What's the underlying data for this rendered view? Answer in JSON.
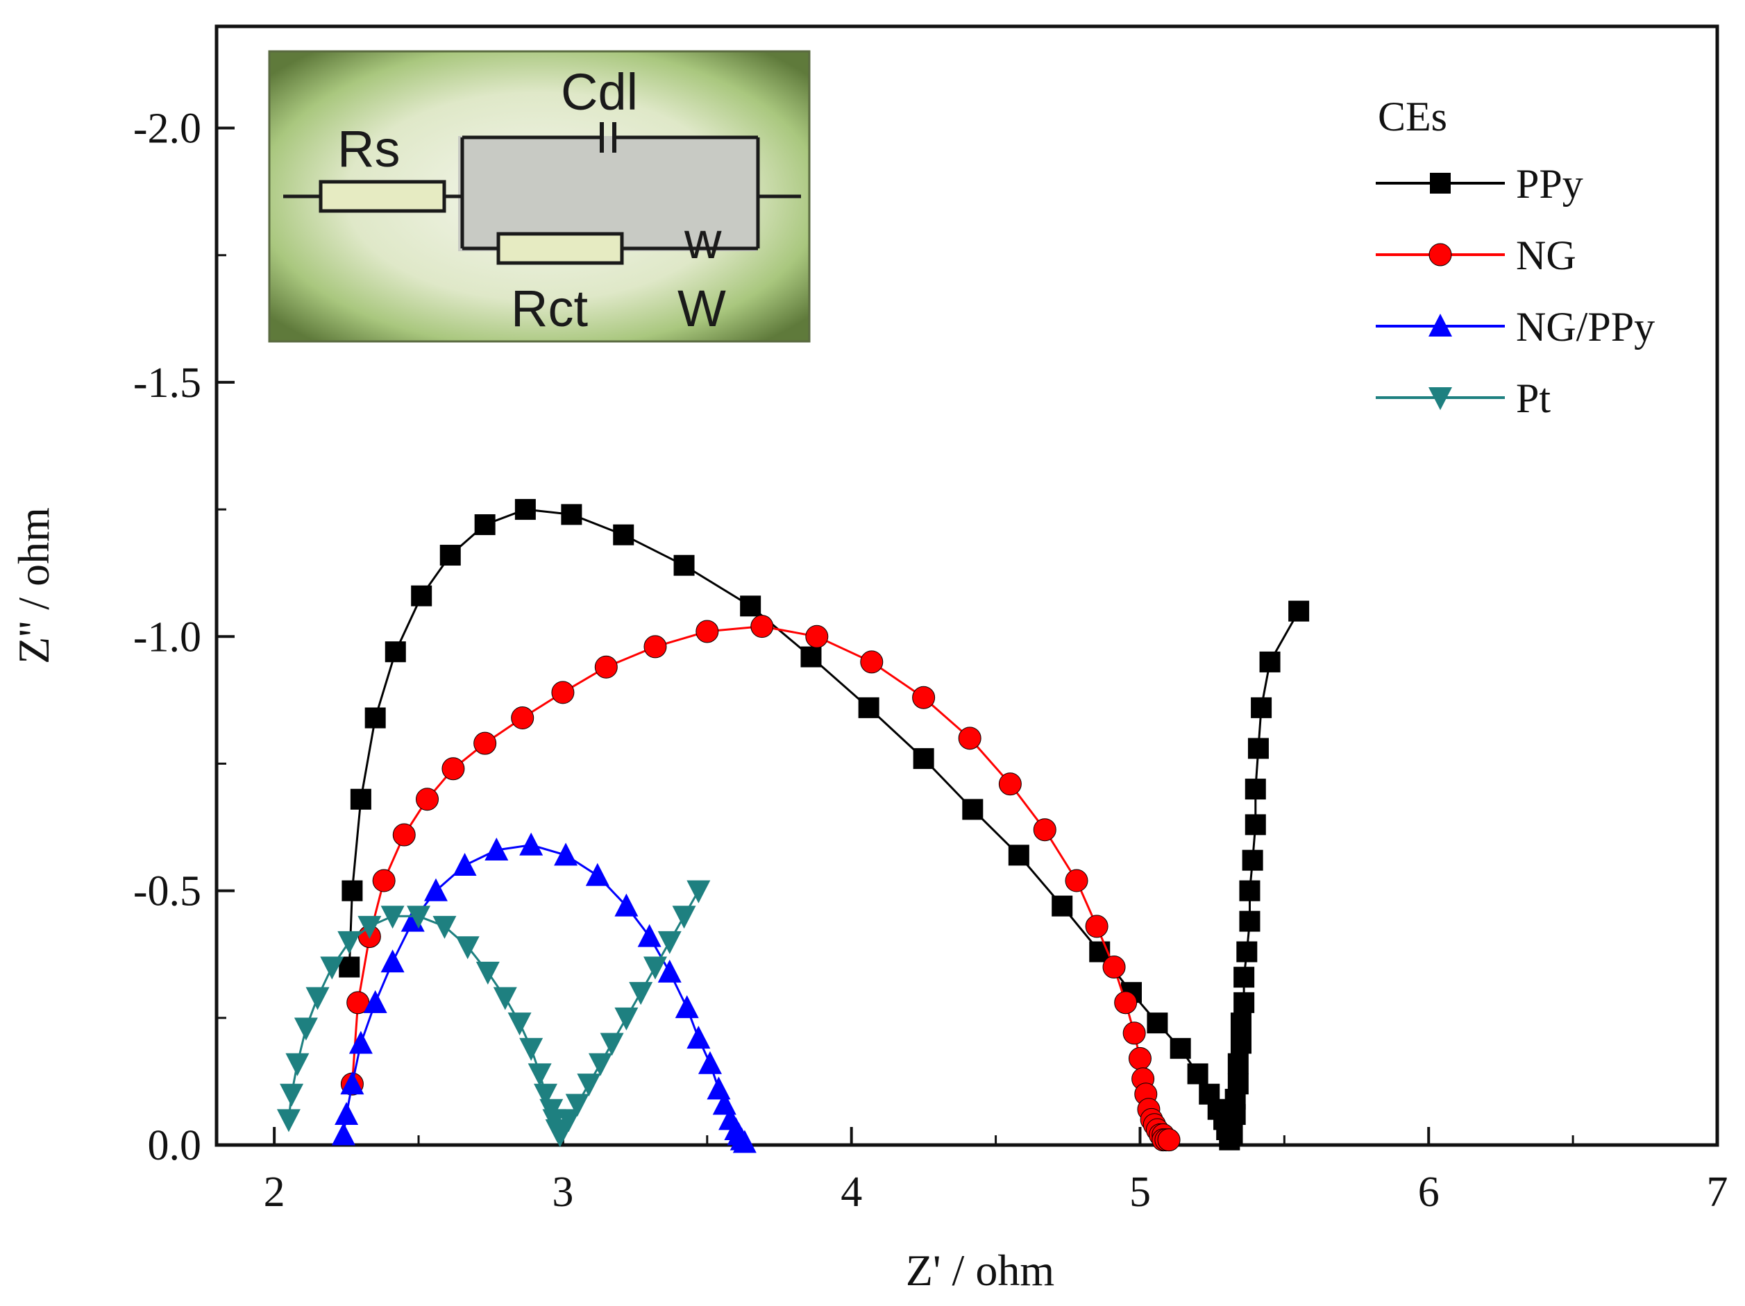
{
  "chart_data": {
    "type": "scatter",
    "title": "",
    "xlabel": "Z' / ohm",
    "ylabel": "Z'' / ohm",
    "xlim": [
      1.8,
      7.0
    ],
    "ylim": [
      0.0,
      -2.2
    ],
    "xticks": [
      2,
      3,
      4,
      5,
      6,
      7
    ],
    "xtick_labels": [
      "2",
      "3",
      "4",
      "5",
      "6",
      "7"
    ],
    "yticks": [
      0.0,
      -0.5,
      -1.0,
      -1.5,
      -2.0
    ],
    "ytick_labels": [
      "0.0",
      "-0.5",
      "-1.0",
      "-1.5",
      "-2.0"
    ],
    "grid": false,
    "legend": {
      "title": "CEs",
      "position": "top-right",
      "entries": [
        "PPy",
        "NG",
        "NG/PPy",
        "Pt"
      ]
    },
    "inset": {
      "type": "equivalent-circuit",
      "labels": {
        "rs": "Rs",
        "cdl": "Cdl",
        "rct": "Rct",
        "w_symbol": "w",
        "w": "W"
      }
    },
    "series": [
      {
        "name": "PPy",
        "color": "#000000",
        "marker": "square",
        "x": [
          2.26,
          2.27,
          2.3,
          2.35,
          2.42,
          2.51,
          2.61,
          2.73,
          2.87,
          3.03,
          3.21,
          3.42,
          3.65,
          3.86,
          4.06,
          4.25,
          4.42,
          4.58,
          4.73,
          4.86,
          4.97,
          5.06,
          5.14,
          5.2,
          5.24,
          5.27,
          5.29,
          5.3,
          5.31,
          5.31,
          5.32,
          5.32,
          5.33,
          5.33,
          5.34,
          5.34,
          5.35,
          5.35,
          5.36,
          5.36,
          5.37,
          5.38,
          5.38,
          5.39,
          5.4,
          5.4,
          5.41,
          5.42,
          5.45,
          5.55
        ],
        "y": [
          -0.35,
          -0.5,
          -0.68,
          -0.84,
          -0.97,
          -1.08,
          -1.16,
          -1.22,
          -1.25,
          -1.24,
          -1.2,
          -1.14,
          -1.06,
          -0.96,
          -0.86,
          -0.76,
          -0.66,
          -0.57,
          -0.47,
          -0.38,
          -0.3,
          -0.24,
          -0.19,
          -0.14,
          -0.1,
          -0.07,
          -0.05,
          -0.03,
          -0.02,
          -0.01,
          -0.02,
          -0.04,
          -0.06,
          -0.09,
          -0.12,
          -0.16,
          -0.2,
          -0.24,
          -0.28,
          -0.33,
          -0.38,
          -0.44,
          -0.5,
          -0.56,
          -0.63,
          -0.7,
          -0.78,
          -0.86,
          -0.95,
          -1.05
        ]
      },
      {
        "name": "NG",
        "color": "#ff0000",
        "marker": "circle",
        "x": [
          2.27,
          2.29,
          2.33,
          2.38,
          2.45,
          2.53,
          2.62,
          2.73,
          2.86,
          3.0,
          3.15,
          3.32,
          3.5,
          3.69,
          3.88,
          4.07,
          4.25,
          4.41,
          4.55,
          4.67,
          4.78,
          4.85,
          4.91,
          4.95,
          4.98,
          5.0,
          5.01,
          5.02,
          5.03,
          5.04,
          5.05,
          5.06,
          5.07,
          5.08,
          5.08,
          5.09,
          5.1
        ],
        "y": [
          -0.12,
          -0.28,
          -0.41,
          -0.52,
          -0.61,
          -0.68,
          -0.74,
          -0.79,
          -0.84,
          -0.89,
          -0.94,
          -0.98,
          -1.01,
          -1.02,
          -1.0,
          -0.95,
          -0.88,
          -0.8,
          -0.71,
          -0.62,
          -0.52,
          -0.43,
          -0.35,
          -0.28,
          -0.22,
          -0.17,
          -0.13,
          -0.1,
          -0.07,
          -0.05,
          -0.04,
          -0.03,
          -0.02,
          -0.02,
          -0.01,
          -0.01,
          -0.01
        ]
      },
      {
        "name": "NG/PPy",
        "color": "#0000ff",
        "marker": "triangle-up",
        "x": [
          2.24,
          2.25,
          2.27,
          2.3,
          2.35,
          2.41,
          2.48,
          2.56,
          2.66,
          2.77,
          2.89,
          3.01,
          3.12,
          3.22,
          3.3,
          3.37,
          3.43,
          3.47,
          3.51,
          3.54,
          3.56,
          3.58,
          3.6,
          3.61,
          3.62,
          3.63
        ],
        "y": [
          -0.02,
          -0.06,
          -0.12,
          -0.2,
          -0.28,
          -0.36,
          -0.44,
          -0.5,
          -0.55,
          -0.58,
          -0.59,
          -0.57,
          -0.53,
          -0.47,
          -0.41,
          -0.34,
          -0.27,
          -0.21,
          -0.16,
          -0.11,
          -0.08,
          -0.05,
          -0.03,
          -0.02,
          -0.01,
          -0.005
        ]
      },
      {
        "name": "Pt",
        "color": "#1e8080",
        "marker": "triangle-down",
        "x": [
          2.05,
          2.06,
          2.08,
          2.11,
          2.15,
          2.2,
          2.26,
          2.33,
          2.41,
          2.5,
          2.59,
          2.67,
          2.74,
          2.8,
          2.85,
          2.89,
          2.92,
          2.94,
          2.96,
          2.97,
          2.98,
          2.99,
          3.0,
          3.02,
          3.05,
          3.09,
          3.13,
          3.17,
          3.22,
          3.27,
          3.32,
          3.37,
          3.42,
          3.47
        ],
        "y": [
          -0.05,
          -0.1,
          -0.16,
          -0.23,
          -0.29,
          -0.35,
          -0.4,
          -0.43,
          -0.45,
          -0.45,
          -0.43,
          -0.39,
          -0.34,
          -0.29,
          -0.24,
          -0.19,
          -0.14,
          -0.1,
          -0.07,
          -0.05,
          -0.03,
          -0.02,
          -0.03,
          -0.05,
          -0.08,
          -0.12,
          -0.16,
          -0.2,
          -0.25,
          -0.3,
          -0.35,
          -0.4,
          -0.45,
          -0.5
        ]
      }
    ]
  }
}
